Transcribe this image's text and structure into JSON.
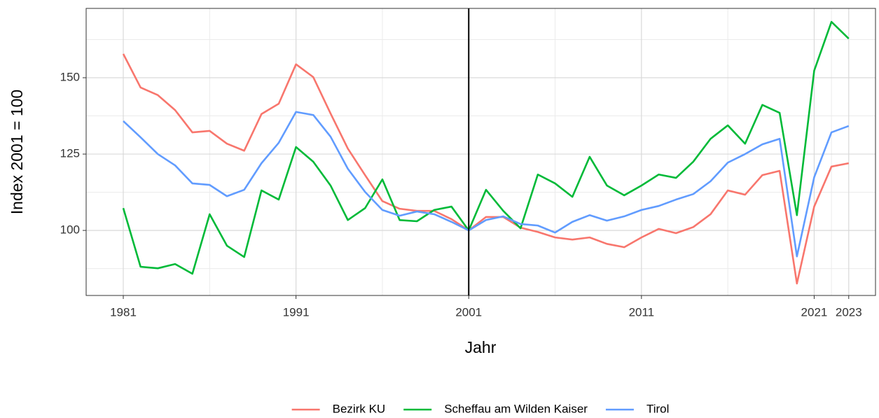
{
  "chart_data": {
    "type": "line",
    "xlabel": "Jahr",
    "ylabel": "Index 2001 = 100",
    "x": [
      1981,
      1982,
      1983,
      1984,
      1985,
      1986,
      1987,
      1988,
      1989,
      1990,
      1991,
      1992,
      1993,
      1994,
      1995,
      1996,
      1997,
      1998,
      1999,
      2000,
      2001,
      2002,
      2003,
      2004,
      2005,
      2006,
      2007,
      2008,
      2009,
      2010,
      2011,
      2012,
      2013,
      2014,
      2015,
      2016,
      2017,
      2018,
      2019,
      2020,
      2021,
      2022,
      2023
    ],
    "series": [
      {
        "name": "Bezirk KU",
        "color": "#f8766d",
        "values": [
          157.8,
          146.8,
          144.3,
          139.4,
          132.1,
          132.6,
          128.4,
          126.1,
          138.1,
          141.5,
          154.4,
          150.2,
          138.3,
          126.8,
          118.1,
          109.6,
          107.1,
          106.4,
          106.4,
          103.7,
          100,
          104.4,
          104.4,
          100.9,
          99.5,
          97.7,
          97.0,
          97.7,
          95.6,
          94.5,
          97.7,
          100.5,
          99.1,
          101.1,
          105.3,
          113.1,
          111.7,
          118.1,
          119.5,
          82.6,
          107.8,
          120.9,
          122.0
        ]
      },
      {
        "name": "Scheffau am Wilden Kaiser",
        "color": "#00ba38",
        "values": [
          107.3,
          88.1,
          87.6,
          89.0,
          85.8,
          105.3,
          95.0,
          91.3,
          113.1,
          110.1,
          127.3,
          122.5,
          114.7,
          103.4,
          107.3,
          116.7,
          103.4,
          103.0,
          106.7,
          107.8,
          100,
          113.3,
          106.4,
          100.7,
          118.3,
          115.4,
          111.0,
          124.1,
          114.7,
          111.5,
          114.7,
          118.3,
          117.2,
          122.5,
          130.0,
          134.4,
          128.4,
          141.1,
          138.5,
          105.0,
          152.3,
          168.3,
          162.8
        ]
      },
      {
        "name": "Tirol",
        "color": "#619cff",
        "values": [
          135.8,
          130.5,
          125.0,
          121.3,
          115.4,
          114.9,
          111.2,
          113.3,
          122.0,
          128.7,
          138.8,
          137.8,
          130.7,
          120.2,
          112.6,
          106.7,
          104.8,
          106.2,
          105.3,
          102.8,
          100,
          103.4,
          104.6,
          102.1,
          101.6,
          99.3,
          102.8,
          105.0,
          103.2,
          104.6,
          106.7,
          108.0,
          110.1,
          111.9,
          116.1,
          122.2,
          125.0,
          128.2,
          130.0,
          91.5,
          117.4,
          132.1,
          134.2
        ]
      }
    ],
    "xlim": [
      1978.85,
      2024.55
    ],
    "xticks": [
      1981,
      1991,
      2001,
      2011,
      2021,
      2023
    ],
    "xminor": [
      1986,
      1996,
      2006,
      2016,
      2022
    ],
    "ylim": [
      78.7,
      172.7
    ],
    "yticks": [
      100,
      125,
      150
    ],
    "yminor": [
      87.5,
      112.5,
      137.5,
      162.5
    ],
    "vline": 2001,
    "grid": true,
    "legend": "bottom"
  }
}
